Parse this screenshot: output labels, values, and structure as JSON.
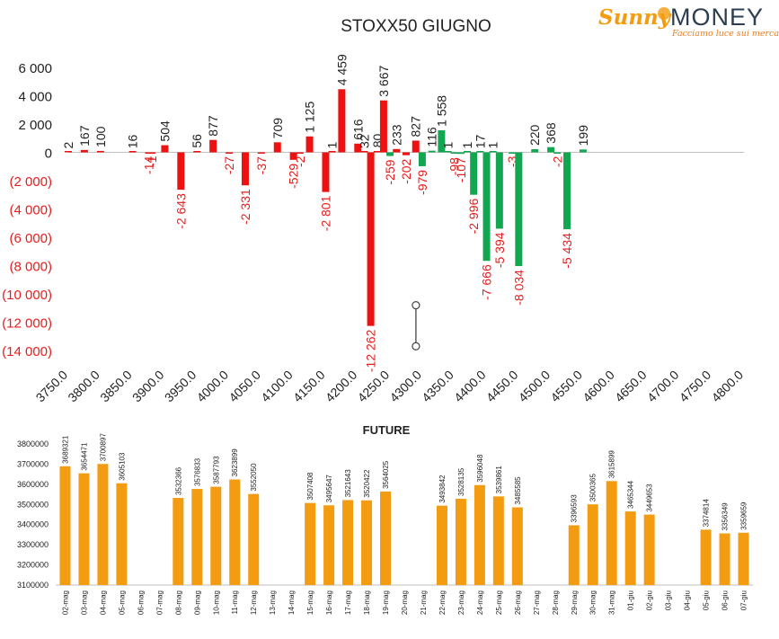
{
  "logo": {
    "brand_a": "Sunny",
    "brand_b": "MONEY",
    "tagline": "Facciamo luce sui mercati",
    "colors": {
      "brand_a": "#f39c12",
      "brand_b": "#2c3e50",
      "tagline": "#e67e22"
    }
  },
  "chart_data": [
    {
      "type": "bar",
      "title": "STOXX50 GIUGNO",
      "xlabel": "",
      "ylabel": "",
      "ylim": [
        -14000,
        6000
      ],
      "y_ticks": [
        "6 000",
        "4 000",
        "2 000",
        "0",
        "(2 000)",
        "(4 000)",
        "(6 000)",
        "(8 000)",
        "(10 000)",
        "(12 000)",
        "(14 000)"
      ],
      "y_tick_values": [
        6000,
        4000,
        2000,
        0,
        -2000,
        -4000,
        -6000,
        -8000,
        -10000,
        -12000,
        -14000
      ],
      "x_ticks": [
        "3750.0",
        "3800.0",
        "3850.0",
        "3900.0",
        "3950.0",
        "4000.0",
        "4050.0",
        "4100.0",
        "4150.0",
        "4200.0",
        "4250.0",
        "4300.0",
        "4350.0",
        "4400.0",
        "4450.0",
        "4500.0",
        "4550.0",
        "4600.0",
        "4650.0",
        "4700.0",
        "4750.0",
        "4800.0"
      ],
      "x_range": [
        3750,
        4800
      ],
      "grid": false,
      "colors": {
        "call_side": "#ee1111",
        "put_side": "#12a650",
        "label_neg": "#e81c1c",
        "label_pos": "#222222"
      },
      "series": [
        {
          "color": "red",
          "points": [
            {
              "x": 3750,
              "value": 2,
              "label": "2"
            },
            {
              "x": 3775,
              "value": 167,
              "label": "167"
            },
            {
              "x": 3800,
              "value": 100,
              "label": "100"
            },
            {
              "x": 3850,
              "value": 16,
              "label": "16"
            },
            {
              "x": 3875,
              "value": -14,
              "label": "-14"
            },
            {
              "x": 3880,
              "value": -1,
              "label": "-1"
            },
            {
              "x": 3900,
              "value": 504,
              "label": "504"
            },
            {
              "x": 3925,
              "value": -2643,
              "label": "-2 643"
            },
            {
              "x": 3950,
              "value": 56,
              "label": "56"
            },
            {
              "x": 3975,
              "value": 877,
              "label": "877"
            },
            {
              "x": 4000,
              "value": -27,
              "label": "-27"
            },
            {
              "x": 4025,
              "value": -2331,
              "label": "-2 331"
            },
            {
              "x": 4050,
              "value": -37,
              "label": "-37"
            },
            {
              "x": 4075,
              "value": 709,
              "label": "709"
            },
            {
              "x": 4100,
              "value": -529,
              "label": "-529"
            },
            {
              "x": 4110,
              "value": -2,
              "label": "-2"
            },
            {
              "x": 4125,
              "value": 1125,
              "label": "1 125"
            },
            {
              "x": 4150,
              "value": -2801,
              "label": "-2 801"
            },
            {
              "x": 4160,
              "value": 1,
              "label": "1"
            },
            {
              "x": 4175,
              "value": 4459,
              "label": "4 459"
            },
            {
              "x": 4200,
              "value": 616,
              "label": "616"
            },
            {
              "x": 4210,
              "value": 32,
              "label": "32"
            },
            {
              "x": 4220,
              "value": -12262,
              "label": "-12 262"
            },
            {
              "x": 4230,
              "value": 80,
              "label": "80"
            },
            {
              "x": 4240,
              "value": 3667,
              "label": "3 667"
            },
            {
              "x": 4260,
              "value": 233,
              "label": "233"
            },
            {
              "x": 4275,
              "value": -202,
              "label": "-202"
            },
            {
              "x": 4290,
              "value": 827,
              "label": "827"
            }
          ]
        },
        {
          "color": "green",
          "points": [
            {
              "x": 4250,
              "value": -259,
              "label": "-259"
            },
            {
              "x": 4300,
              "value": -979,
              "label": "-979"
            },
            {
              "x": 4315,
              "value": 116,
              "label": "116"
            },
            {
              "x": 4330,
              "value": 1558,
              "label": "1 558"
            },
            {
              "x": 4340,
              "value": 1,
              "label": "1"
            },
            {
              "x": 4350,
              "value": -98,
              "label": "-98"
            },
            {
              "x": 4360,
              "value": -107,
              "label": "-107"
            },
            {
              "x": 4370,
              "value": 1,
              "label": "1"
            },
            {
              "x": 4380,
              "value": -2996,
              "label": "-2 996"
            },
            {
              "x": 4390,
              "value": 17,
              "label": "17"
            },
            {
              "x": 4400,
              "value": -7666,
              "label": "-7 666"
            },
            {
              "x": 4410,
              "value": 1,
              "label": "1"
            },
            {
              "x": 4420,
              "value": -5394,
              "label": "-5 394"
            },
            {
              "x": 4440,
              "value": -3,
              "label": "-3"
            },
            {
              "x": 4450,
              "value": -8034,
              "label": "-8 034"
            },
            {
              "x": 4475,
              "value": 220,
              "label": "220"
            },
            {
              "x": 4500,
              "value": 368,
              "label": "368"
            },
            {
              "x": 4510,
              "value": -2,
              "label": "-2"
            },
            {
              "x": 4525,
              "value": -5434,
              "label": "-5 434"
            },
            {
              "x": 4550,
              "value": 199,
              "label": "199"
            }
          ]
        }
      ],
      "marker_range": {
        "x": 4300,
        "y_top": -10800,
        "y_bottom": -13700
      }
    },
    {
      "type": "bar",
      "title": "FUTURE",
      "xlabel": "",
      "ylabel": "",
      "ylim": [
        3100000,
        3800000
      ],
      "y_ticks": [
        "3800000",
        "3700000",
        "3600000",
        "3500000",
        "3400000",
        "3300000",
        "3200000",
        "3100000"
      ],
      "y_tick_values": [
        3800000,
        3700000,
        3600000,
        3500000,
        3400000,
        3300000,
        3200000,
        3100000
      ],
      "grid": false,
      "colors": {
        "bar": "#f39c12"
      },
      "categories": [
        "02-mag",
        "03-mag",
        "04-mag",
        "05-mag",
        "06-mag",
        "07-mag",
        "08-mag",
        "09-mag",
        "10-mag",
        "11-mag",
        "12-mag",
        "13-mag",
        "14-mag",
        "15-mag",
        "16-mag",
        "17-mag",
        "18-mag",
        "19-mag",
        "20-mag",
        "21-mag",
        "22-mag",
        "23-mag",
        "24-mag",
        "25-mag",
        "26-mag",
        "27-mag",
        "28-mag",
        "29-mag",
        "30-mag",
        "31-mag",
        "01-giu",
        "02-giu",
        "03-giu",
        "04-giu",
        "05-giu",
        "06-giu",
        "07-giu"
      ],
      "values": [
        3689321,
        3654471,
        3700897,
        3605103,
        null,
        null,
        3532366,
        3576833,
        3587793,
        3623899,
        3552050,
        null,
        null,
        3507408,
        3495647,
        3521643,
        3520422,
        3564025,
        null,
        null,
        3493842,
        3528135,
        3596048,
        3539861,
        3485585,
        null,
        null,
        3396593,
        3500365,
        3615899,
        3465344,
        3449653,
        null,
        null,
        3374814,
        3356349,
        3359659
      ],
      "labels": [
        "3689321",
        "3654471",
        "3700897",
        "3605103",
        "",
        "",
        "3532366",
        "3576833",
        "3587793",
        "3623899",
        "3552050",
        "",
        "",
        "3507408",
        "3495647",
        "3521643",
        "3520422",
        "3564025",
        "",
        "",
        "3493842",
        "3528135",
        "3596048",
        "3539861",
        "3485585",
        "",
        "",
        "3396593",
        "3500365",
        "3615899",
        "3465344",
        "3449653",
        "",
        "",
        "3374814",
        "3356349",
        "3359659"
      ]
    }
  ]
}
